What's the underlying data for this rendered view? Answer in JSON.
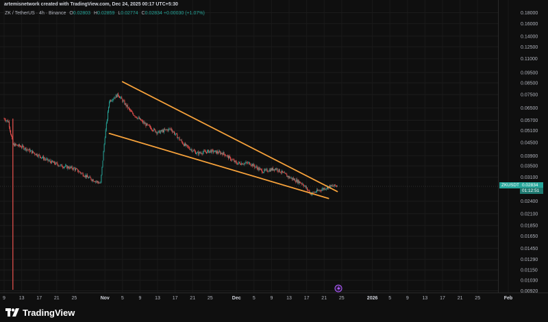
{
  "header": {
    "text": "artemisnetwork created with TradingView.com, Dec 24, 2025 00:17 UTC+5:30"
  },
  "legend": {
    "title": "ZK / TetherUS · 4h · Binance",
    "o_label": "O",
    "o": "0.02803",
    "h_label": "H",
    "h": "0.02859",
    "l_label": "L",
    "l": "0.02774",
    "c_label": "C",
    "c": "0.02834",
    "change": "+0.00030 (+1.07%)"
  },
  "price_tag": {
    "symbol": "ZKUSDT",
    "price": "0.02834",
    "countdown": "01:12:51"
  },
  "footer": {
    "brand": "TradingView"
  },
  "colors": {
    "up": "#26a69a",
    "down": "#ef5350",
    "pattern": "#f7a23b",
    "background": "#0f0f0f"
  },
  "chart_data": {
    "type": "candlestick",
    "symbol": "ZK / TetherUS",
    "interval": "4h",
    "exchange": "Binance",
    "y_scale": "log",
    "ylim": [
      0.0092,
      0.19
    ],
    "y_ticks": [
      "0.18000",
      "0.16000",
      "0.14000",
      "0.12500",
      "0.11000",
      "0.09500",
      "0.08500",
      "0.07500",
      "0.06500",
      "0.05700",
      "0.05100",
      "0.04500",
      "0.03900",
      "0.03500",
      "0.03100",
      "0.02400",
      "0.02100",
      "0.01850",
      "0.01650",
      "0.01450",
      "0.01290",
      "0.01150",
      "0.01030",
      "0.00920"
    ],
    "x_ticks": [
      {
        "label": "9",
        "date": "2025-10-09"
      },
      {
        "label": "13",
        "date": "2025-10-13"
      },
      {
        "label": "17",
        "date": "2025-10-17"
      },
      {
        "label": "21",
        "date": "2025-10-21"
      },
      {
        "label": "25",
        "date": "2025-10-25"
      },
      {
        "label": "Nov",
        "date": "2025-11-01"
      },
      {
        "label": "5",
        "date": "2025-11-05"
      },
      {
        "label": "9",
        "date": "2025-11-09"
      },
      {
        "label": "13",
        "date": "2025-11-13"
      },
      {
        "label": "17",
        "date": "2025-11-17"
      },
      {
        "label": "21",
        "date": "2025-11-21"
      },
      {
        "label": "25",
        "date": "2025-11-25"
      },
      {
        "label": "Dec",
        "date": "2025-12-01"
      },
      {
        "label": "5",
        "date": "2025-12-05"
      },
      {
        "label": "9",
        "date": "2025-12-09"
      },
      {
        "label": "13",
        "date": "2025-12-13"
      },
      {
        "label": "17",
        "date": "2025-12-17"
      },
      {
        "label": "21",
        "date": "2025-12-21"
      },
      {
        "label": "25",
        "date": "2025-12-25"
      },
      {
        "label": "2026",
        "date": "2026-01-01"
      },
      {
        "label": "5",
        "date": "2026-01-05"
      },
      {
        "label": "9",
        "date": "2026-01-09"
      },
      {
        "label": "13",
        "date": "2026-01-13"
      },
      {
        "label": "17",
        "date": "2026-01-17"
      },
      {
        "label": "21",
        "date": "2026-01-21"
      },
      {
        "label": "25",
        "date": "2026-01-25"
      },
      {
        "label": "Feb",
        "date": "2026-02-01"
      }
    ],
    "last_price": 0.02834,
    "price_path": [
      {
        "date": "2025-10-09",
        "price": 0.058
      },
      {
        "date": "2025-10-10",
        "price": 0.056
      },
      {
        "date": "2025-10-11",
        "price": 0.044
      },
      {
        "date": "2025-10-13",
        "price": 0.043
      },
      {
        "date": "2025-10-16",
        "price": 0.04
      },
      {
        "date": "2025-10-19",
        "price": 0.037
      },
      {
        "date": "2025-10-22",
        "price": 0.035
      },
      {
        "date": "2025-10-25",
        "price": 0.034
      },
      {
        "date": "2025-10-28",
        "price": 0.031
      },
      {
        "date": "2025-10-31",
        "price": 0.029
      },
      {
        "date": "2025-11-01",
        "price": 0.048
      },
      {
        "date": "2025-11-02",
        "price": 0.07
      },
      {
        "date": "2025-11-04",
        "price": 0.075
      },
      {
        "date": "2025-11-07",
        "price": 0.062
      },
      {
        "date": "2025-11-10",
        "price": 0.055
      },
      {
        "date": "2025-11-13",
        "price": 0.05
      },
      {
        "date": "2025-11-16",
        "price": 0.052
      },
      {
        "date": "2025-11-19",
        "price": 0.044
      },
      {
        "date": "2025-11-22",
        "price": 0.04
      },
      {
        "date": "2025-11-25",
        "price": 0.041
      },
      {
        "date": "2025-11-28",
        "price": 0.04
      },
      {
        "date": "2025-12-01",
        "price": 0.036
      },
      {
        "date": "2025-12-04",
        "price": 0.036
      },
      {
        "date": "2025-12-07",
        "price": 0.033
      },
      {
        "date": "2025-12-10",
        "price": 0.034
      },
      {
        "date": "2025-12-13",
        "price": 0.031
      },
      {
        "date": "2025-12-16",
        "price": 0.029
      },
      {
        "date": "2025-12-18",
        "price": 0.026
      },
      {
        "date": "2025-12-20",
        "price": 0.027
      },
      {
        "date": "2025-12-22",
        "price": 0.028
      },
      {
        "date": "2025-12-24",
        "price": 0.02834
      }
    ],
    "annotations": [
      {
        "type": "trendline",
        "name": "falling-wedge-upper",
        "from": {
          "date": "2025-11-05",
          "price": 0.086
        },
        "to": {
          "date": "2025-12-24",
          "price": 0.0266
        }
      },
      {
        "type": "trendline",
        "name": "falling-wedge-lower",
        "from": {
          "date": "2025-11-02",
          "price": 0.0495
        },
        "to": {
          "date": "2025-12-22",
          "price": 0.0247
        }
      }
    ]
  }
}
